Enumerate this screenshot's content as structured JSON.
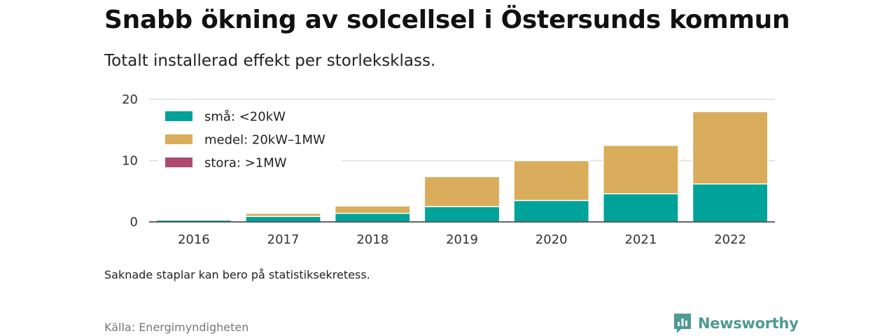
{
  "title": "Snabb ökning av solcellsel i Östersunds kommun",
  "subtitle": "Totalt installerad effekt per storleksklass.",
  "note": "Saknade staplar kan bero på statistiksekretess.",
  "source": "Källa: Energimyndigheten",
  "brand": {
    "name": "Newsworthy",
    "icon": "newsworthy-logo-icon",
    "color": "#4e9a94"
  },
  "chart_data": {
    "type": "bar",
    "stacked": true,
    "categories": [
      "2016",
      "2017",
      "2018",
      "2019",
      "2020",
      "2021",
      "2022"
    ],
    "series": [
      {
        "name": "små: <20kW",
        "color": "#00a39a",
        "values": [
          0.3,
          0.9,
          1.4,
          2.5,
          3.5,
          4.6,
          6.2
        ]
      },
      {
        "name": "medel: 20kW–1MW",
        "color": "#d9ad5b",
        "values": [
          0,
          0.5,
          1.2,
          4.9,
          6.5,
          7.9,
          11.8
        ]
      },
      {
        "name": "stora: >1MW",
        "color": "#ad4a6e",
        "values": [
          0,
          0,
          0,
          0,
          0,
          0,
          0
        ]
      }
    ],
    "yticks": [
      0,
      10,
      20
    ],
    "ylim": [
      0,
      20
    ],
    "grid": true,
    "legend_position": "top-left"
  }
}
